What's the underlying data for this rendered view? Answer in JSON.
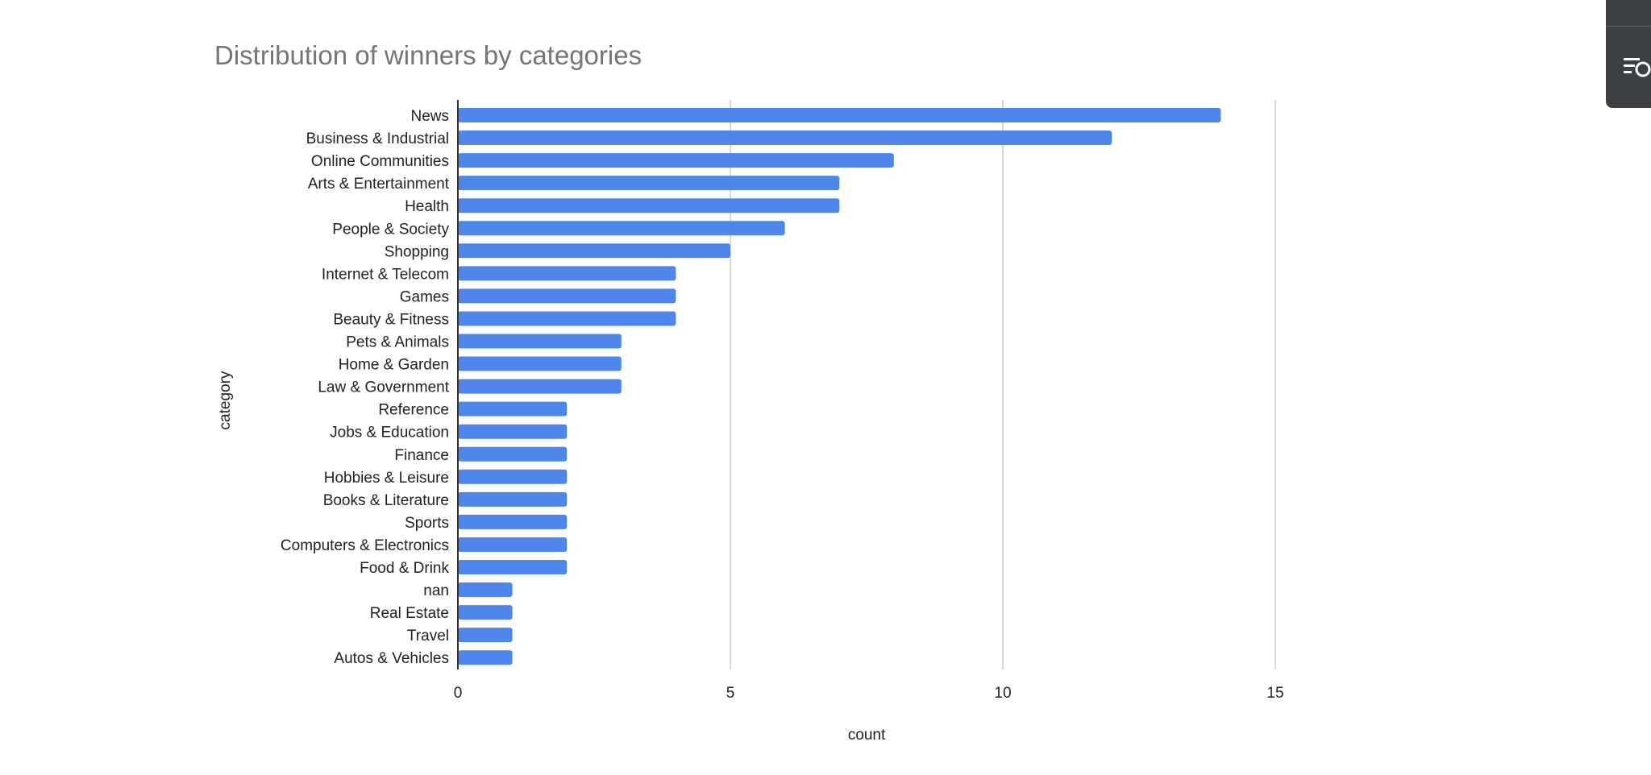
{
  "chart_data": {
    "type": "bar",
    "orientation": "horizontal",
    "title": "Distribution of winners by categories",
    "xlabel": "count",
    "ylabel": "category",
    "xlim": [
      0,
      15
    ],
    "xticks": [
      0,
      5,
      10,
      15
    ],
    "grid": true,
    "bar_color": "#4f86ec",
    "categories": [
      "News",
      "Business & Industrial",
      "Online Communities",
      "Arts & Entertainment",
      "Health",
      "People & Society",
      "Shopping",
      "Internet & Telecom",
      "Games",
      "Beauty & Fitness",
      "Pets & Animals",
      "Home & Garden",
      "Law & Government",
      "Reference",
      "Jobs & Education",
      "Finance",
      "Hobbies & Leisure",
      "Books & Literature",
      "Sports",
      "Computers & Electronics",
      "Food & Drink",
      "nan",
      "Real Estate",
      "Travel",
      "Autos & Vehicles"
    ],
    "values": [
      14,
      12,
      8,
      7,
      7,
      6,
      5,
      4,
      4,
      4,
      3,
      3,
      3,
      2,
      2,
      2,
      2,
      2,
      2,
      2,
      2,
      1,
      1,
      1,
      1
    ]
  },
  "side_widget": {
    "icon": "chart-settings-icon",
    "background": "#3c4043"
  }
}
